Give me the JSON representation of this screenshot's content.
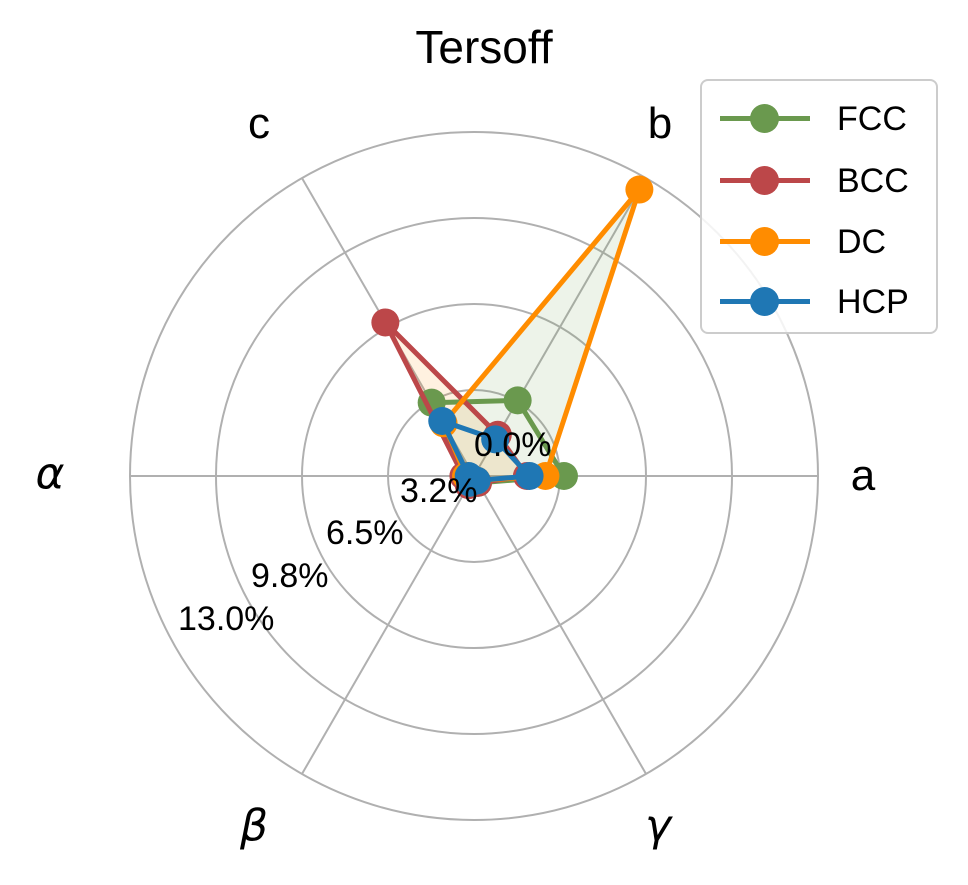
{
  "chart_data": {
    "type": "radar",
    "title": "Tersoff",
    "axes": [
      "a",
      "b",
      "c",
      "α",
      "β",
      "γ"
    ],
    "axis_angles_deg": [
      0,
      60,
      120,
      180,
      240,
      300
    ],
    "radial_ticks": [
      "0.0%",
      "3.2%",
      "6.5%",
      "9.8%",
      "13.0%"
    ],
    "radial_tick_values": [
      0.0,
      3.25,
      6.5,
      9.75,
      13.0
    ],
    "rlim": [
      0,
      13.0
    ],
    "grid": true,
    "legend_position": "upper right",
    "series": [
      {
        "name": "FCC",
        "color": "#6a994e",
        "fill": null,
        "values": [
          3.4,
          3.3,
          3.2,
          0.3,
          0.2,
          0.3
        ]
      },
      {
        "name": "BCC",
        "color": "#bc4749",
        "fill": "#ff8c00",
        "values": [
          2.0,
          1.8,
          6.7,
          0.4,
          0.4,
          0.3
        ]
      },
      {
        "name": "DC",
        "color": "#ff8c00",
        "fill": "#6a994e",
        "values": [
          2.7,
          12.5,
          2.3,
          0.3,
          0.3,
          0.2
        ]
      },
      {
        "name": "HCP",
        "color": "#1f77b4",
        "fill": null,
        "values": [
          2.1,
          1.6,
          2.4,
          0.2,
          0.3,
          0.2
        ]
      }
    ]
  },
  "legend": {
    "items": [
      {
        "label": "FCC",
        "color": "#6a994e"
      },
      {
        "label": "BCC",
        "color": "#bc4749"
      },
      {
        "label": "DC",
        "color": "#ff8c00"
      },
      {
        "label": "HCP",
        "color": "#1f77b4"
      }
    ]
  }
}
